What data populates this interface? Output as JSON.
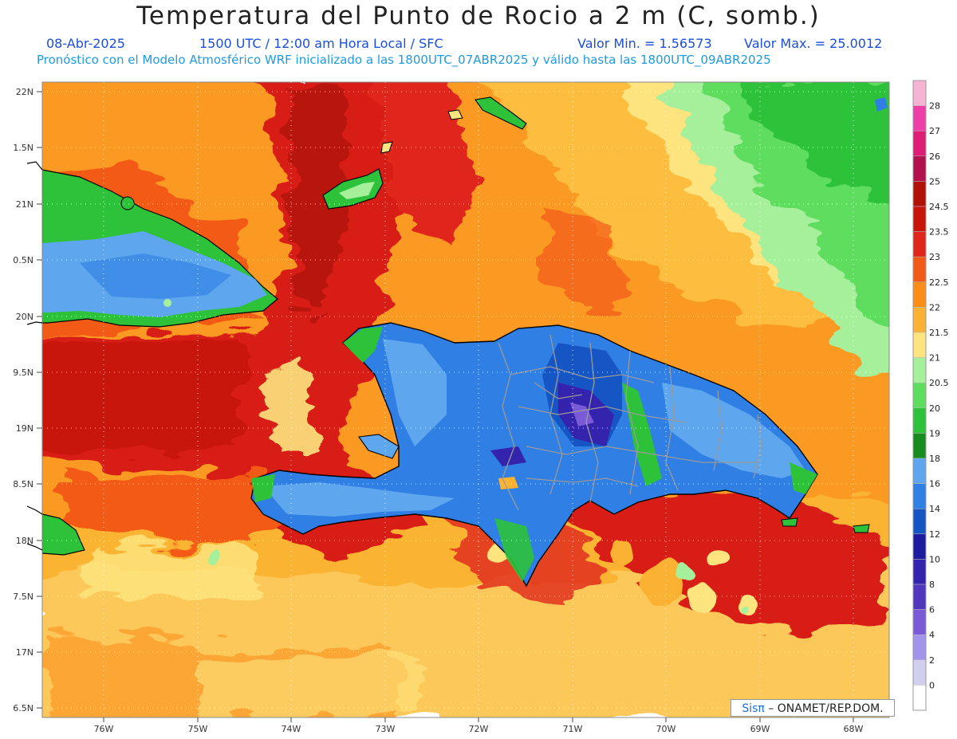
{
  "header": {
    "title": "Temperatura del Punto de Rocio a 2 m (C, somb.)",
    "date": "08-Abr-2025",
    "time": "1500 UTC / 12:00 am Hora Local / SFC",
    "valmin": "Valor Min. = 1.56573",
    "valmax": "Valor Max. = 25.0012",
    "model_info": "Pronóstico con el Modelo Atmosférico WRF inicializado a las 1800UTC_07ABR2025 y válido hasta las  1800UTC_09ABR2025"
  },
  "colors": {
    "subtitle": "#1b4fd9",
    "model_info": "#1e9be0",
    "land_outline": "#000000",
    "province_lines": "#9a9a9a"
  },
  "lat_labels": [
    "22N",
    "1.5N",
    "21N",
    "0.5N",
    "20N",
    "9.5N",
    "19N",
    "8.5N",
    "18N",
    "7.5N",
    "17N",
    "6.5N"
  ],
  "lon_labels": [
    "76W",
    "75W",
    "74W",
    "73W",
    "72W",
    "71W",
    "70W",
    "69W",
    "68W"
  ],
  "colorbar": {
    "labels": [
      "28",
      "27",
      "26",
      "25",
      "24.5",
      "23.5",
      "23",
      "22.5",
      "22",
      "21.5",
      "21",
      "20.5",
      "20",
      "19",
      "18",
      "16",
      "14",
      "12",
      "10",
      "8",
      "6",
      "4",
      "2",
      "0"
    ],
    "colors": [
      "#f6b3d4",
      "#ee3fa8",
      "#dd1c76",
      "#b1114d",
      "#b01208",
      "#c8150c",
      "#e0261b",
      "#f25a17",
      "#fb8e16",
      "#fbb132",
      "#fde47e",
      "#a6ef9b",
      "#5fdd5e",
      "#2ec23a",
      "#178c1f",
      "#5ea6ee",
      "#2f7fe4",
      "#1656c4",
      "#1d1b9e",
      "#3424ad",
      "#5136be",
      "#7a5ad6",
      "#a294ec",
      "#d2ceef",
      "#ffffff"
    ]
  },
  "credit": {
    "brand": "Sisπ",
    "agency": " – ONAMET/REP.DOM."
  }
}
